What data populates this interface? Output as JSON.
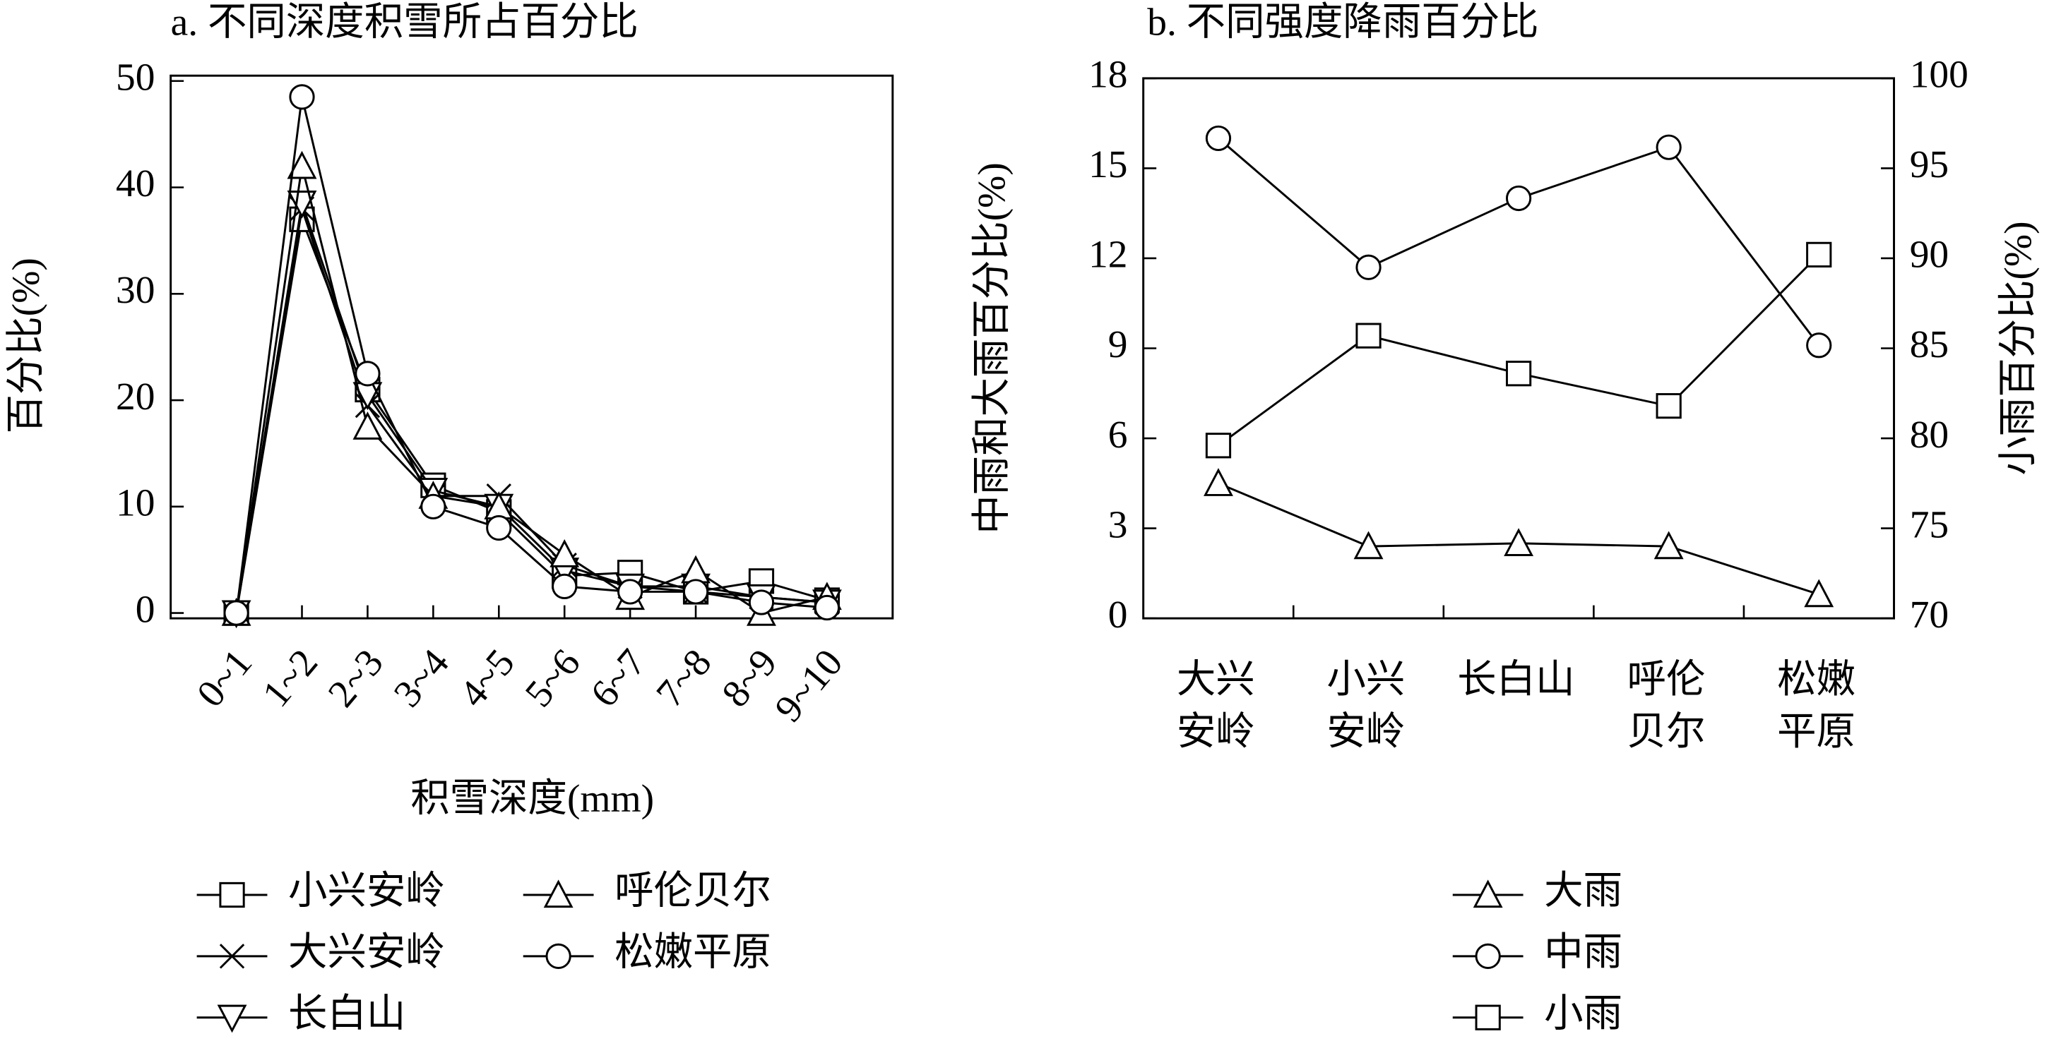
{
  "chart_data": [
    {
      "type": "line",
      "title": "a. 不同深度积雪所占百分比",
      "x_label": "积雪深度(mm)",
      "y_label": "百分比(%)",
      "categories": [
        "0~1",
        "1~2",
        "2~3",
        "3~4",
        "4~5",
        "5~6",
        "6~7",
        "7~8",
        "8~9",
        "9~10"
      ],
      "ylim": [
        -0.5,
        50.5
      ],
      "yticks": [
        0,
        10,
        20,
        30,
        40,
        50
      ],
      "series": [
        {
          "name": "小兴安岭",
          "color": "#000000",
          "marker": "square",
          "values": [
            0,
            37,
            21,
            12,
            9.5,
            3.5,
            3.8,
            2,
            3,
            1.2
          ]
        },
        {
          "name": "大兴安岭",
          "color": "#000000",
          "marker": "x",
          "values": [
            0,
            38,
            19.5,
            11,
            11,
            4.5,
            2.5,
            2,
            1.5,
            1
          ]
        },
        {
          "name": "长白山",
          "color": "#000000",
          "marker": "triangle-down",
          "values": [
            0,
            38.5,
            20.5,
            11.5,
            10,
            4,
            2.5,
            2.5,
            1.5,
            1
          ]
        },
        {
          "name": "呼伦贝尔",
          "color": "#000000",
          "marker": "triangle",
          "values": [
            0,
            42,
            17.5,
            11,
            10,
            5.5,
            1.5,
            4,
            0,
            1.5
          ]
        },
        {
          "name": "松嫩平原",
          "color": "#000000",
          "marker": "circle",
          "values": [
            0,
            48.5,
            22.5,
            10,
            8,
            2.5,
            2,
            2,
            1,
            0.5
          ]
        }
      ]
    },
    {
      "type": "line",
      "title": "b. 不同强度降雨百分比",
      "y_label": "中雨和大雨百分比(%)",
      "y2_label": "小雨百分比(%)",
      "categories": [
        [
          "大兴",
          "安岭"
        ],
        [
          "小兴",
          "安岭"
        ],
        [
          "长白山"
        ],
        [
          "呼伦",
          "贝尔"
        ],
        [
          "松嫩",
          "平原"
        ]
      ],
      "ylim": [
        0,
        18
      ],
      "yticks": [
        0,
        3,
        6,
        9,
        12,
        15,
        18
      ],
      "y2lim": [
        70,
        100
      ],
      "y2ticks": [
        70,
        75,
        80,
        85,
        90,
        95,
        100
      ],
      "series": [
        {
          "name": "大雨",
          "color": "#000000",
          "marker": "triangle",
          "values": [
            4.5,
            2.4,
            2.5,
            2.4,
            0.8
          ]
        },
        {
          "name": "中雨",
          "color": "#000000",
          "marker": "circle",
          "values": [
            16.0,
            11.7,
            14.0,
            15.7,
            9.1
          ]
        },
        {
          "name": "小雨",
          "color": "#000000",
          "marker": "square",
          "axis": "y2",
          "values": [
            79.6,
            85.7,
            83.6,
            81.8,
            90.2
          ]
        }
      ]
    }
  ]
}
